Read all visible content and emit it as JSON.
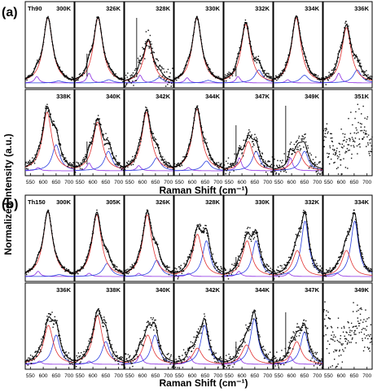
{
  "figure": {
    "ylabel": "Normalized Intensity (a.u.)",
    "xlabel": "Raman Shift (cm⁻¹)",
    "tick_labels": [
      "550",
      "600",
      "650",
      "700"
    ],
    "colors": {
      "data": "#111111",
      "fit_total": "#000000",
      "peak_main": "#e03030",
      "peak_low": "#8a2be2",
      "peak_high": "#2a3ee0",
      "axes": "#000000"
    }
  },
  "chart_data": [
    {
      "type": "scatter",
      "panel_label": "(a)",
      "sample": "Th90",
      "xlabel": "Raman Shift (cm⁻¹)",
      "ylabel": "Normalized Intensity (a.u.)",
      "xlim": [
        530,
        720
      ],
      "x_ticks": [
        550,
        600,
        650,
        700
      ],
      "subplots": [
        {
          "temp": "300K",
          "amps": [
            1.0,
            0.1,
            0.03
          ],
          "centers": [
            618,
            575,
            660
          ],
          "sharp": 0.0,
          "noise": 0.03
        },
        {
          "temp": "326K",
          "amps": [
            1.0,
            0.15,
            0.05
          ],
          "centers": [
            620,
            585,
            662
          ],
          "sharp": 0.45,
          "noise": 0.04
        },
        {
          "temp": "328K",
          "amps": [
            0.65,
            0.12,
            0.08
          ],
          "centers": [
            622,
            590,
            665
          ],
          "sharp": 1.0,
          "noise": 0.14
        },
        {
          "temp": "330K",
          "amps": [
            1.0,
            0.08,
            0.04
          ],
          "centers": [
            618,
            580,
            662
          ],
          "sharp": 0.0,
          "noise": 0.03
        },
        {
          "temp": "332K",
          "amps": [
            0.9,
            0.1,
            0.2
          ],
          "centers": [
            615,
            585,
            665
          ],
          "sharp": 0.25,
          "noise": 0.06
        },
        {
          "temp": "334K",
          "amps": [
            1.0,
            0.05,
            0.12
          ],
          "centers": [
            618,
            585,
            650
          ],
          "sharp": 0.0,
          "noise": 0.04
        },
        {
          "temp": "336K",
          "amps": [
            0.85,
            0.15,
            0.2
          ],
          "centers": [
            620,
            590,
            662
          ],
          "sharp": 0.0,
          "noise": 0.07
        },
        {
          "temp": "338K",
          "amps": [
            0.9,
            0.05,
            0.4
          ],
          "centers": [
            615,
            580,
            650
          ],
          "sharp": 0.0,
          "noise": 0.07
        },
        {
          "temp": "340K",
          "amps": [
            0.75,
            0.12,
            0.3
          ],
          "centers": [
            618,
            585,
            660
          ],
          "sharp": 0.45,
          "noise": 0.09
        },
        {
          "temp": "342K",
          "amps": [
            0.9,
            0.08,
            0.2
          ],
          "centers": [
            615,
            585,
            655
          ],
          "sharp": 0.0,
          "noise": 0.07
        },
        {
          "temp": "344K",
          "amps": [
            0.95,
            0.05,
            0.15
          ],
          "centers": [
            618,
            585,
            655
          ],
          "sharp": 0.0,
          "noise": 0.05
        },
        {
          "temp": "347K",
          "amps": [
            0.45,
            0.2,
            0.3
          ],
          "centers": [
            625,
            590,
            655
          ],
          "sharp": 0.7,
          "noise": 0.12
        },
        {
          "temp": "349K",
          "amps": [
            0.3,
            0.2,
            0.3
          ],
          "centers": [
            625,
            595,
            650
          ],
          "sharp": 1.0,
          "noise": 0.14
        },
        {
          "temp": "351K",
          "amps": [
            0.0,
            0.0,
            0.0
          ],
          "centers": [
            620,
            590,
            660
          ],
          "sharp": 0.0,
          "noise": 0.35
        }
      ]
    },
    {
      "type": "scatter",
      "panel_label": "(b)",
      "sample": "Th150",
      "xlabel": "Raman Shift (cm⁻¹)",
      "ylabel": "Normalized Intensity (a.u.)",
      "xlim": [
        530,
        720
      ],
      "x_ticks": [
        550,
        600,
        650,
        700
      ],
      "subplots": [
        {
          "temp": "300K",
          "amps": [
            1.0,
            0.08,
            0.03
          ],
          "centers": [
            618,
            580,
            662
          ],
          "sharp": 0.0,
          "noise": 0.03
        },
        {
          "temp": "305K",
          "amps": [
            0.95,
            0.05,
            0.2
          ],
          "centers": [
            615,
            585,
            655
          ],
          "sharp": 0.0,
          "noise": 0.04
        },
        {
          "temp": "326K",
          "amps": [
            0.95,
            0.05,
            0.25
          ],
          "centers": [
            618,
            585,
            655
          ],
          "sharp": 0.0,
          "noise": 0.05
        },
        {
          "temp": "328K",
          "amps": [
            0.65,
            0.05,
            0.55
          ],
          "centers": [
            620,
            585,
            655
          ],
          "sharp": 0.0,
          "noise": 0.08
        },
        {
          "temp": "330K",
          "amps": [
            0.55,
            0.08,
            0.55
          ],
          "centers": [
            620,
            588,
            655
          ],
          "sharp": 0.3,
          "noise": 0.09
        },
        {
          "temp": "332K",
          "amps": [
            0.4,
            0.05,
            0.85
          ],
          "centers": [
            622,
            588,
            652
          ],
          "sharp": 0.0,
          "noise": 0.08
        },
        {
          "temp": "334K",
          "amps": [
            0.4,
            0.05,
            0.85
          ],
          "centers": [
            620,
            585,
            652
          ],
          "sharp": 0.0,
          "noise": 0.06
        },
        {
          "temp": "336K",
          "amps": [
            0.6,
            0.05,
            0.45
          ],
          "centers": [
            620,
            585,
            650
          ],
          "sharp": 0.0,
          "noise": 0.09
        },
        {
          "temp": "338K",
          "amps": [
            0.75,
            0.05,
            0.35
          ],
          "centers": [
            618,
            585,
            650
          ],
          "sharp": 0.0,
          "noise": 0.09
        },
        {
          "temp": "340K",
          "amps": [
            0.45,
            0.15,
            0.45
          ],
          "centers": [
            620,
            590,
            648
          ],
          "sharp": 0.0,
          "noise": 0.1
        },
        {
          "temp": "342K",
          "amps": [
            0.25,
            0.12,
            0.6
          ],
          "centers": [
            620,
            590,
            648
          ],
          "sharp": 0.0,
          "noise": 0.11
        },
        {
          "temp": "344K",
          "amps": [
            0.3,
            0.1,
            0.7
          ],
          "centers": [
            618,
            590,
            648
          ],
          "sharp": 0.35,
          "noise": 0.11
        },
        {
          "temp": "347K",
          "amps": [
            0.35,
            0.12,
            0.5
          ],
          "centers": [
            620,
            595,
            650
          ],
          "sharp": 0.8,
          "noise": 0.13
        },
        {
          "temp": "349K",
          "amps": [
            0.0,
            0.0,
            0.0
          ],
          "centers": [
            620,
            590,
            660
          ],
          "sharp": 0.0,
          "noise": 0.35
        }
      ]
    }
  ]
}
